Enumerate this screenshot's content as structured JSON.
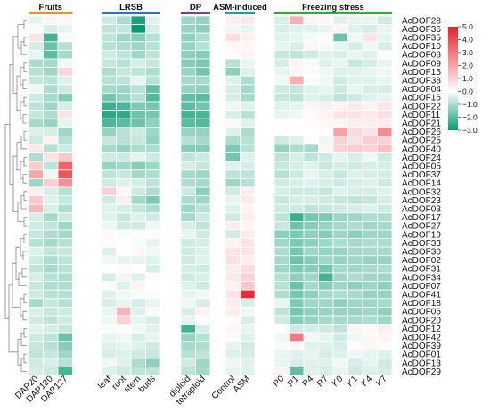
{
  "colors": {
    "low": "#0a9a72",
    "mid": "#ffffff",
    "high": "#e8202a",
    "dendrogram": "#888888",
    "cell_border": "#ffffff"
  },
  "chart_data": {
    "type": "heatmap",
    "groups": [
      {
        "name": "Fruits",
        "color": "#f08c32",
        "columns": [
          "DAP20",
          "DAP120",
          "DAP127"
        ]
      },
      {
        "name": "LRSB",
        "color": "#2f73c7",
        "columns": [
          "leaf",
          "root",
          "stem",
          "buds"
        ]
      },
      {
        "name": "DP",
        "color": "#7b3fa0",
        "columns": [
          "diploid",
          "tetraploid"
        ]
      },
      {
        "name": "ASM-induced",
        "color": "#1fa38a",
        "columns": [
          "Control",
          "ASM"
        ]
      },
      {
        "name": "Freezing stress",
        "color": "#33aa33",
        "columns": [
          "R0",
          "R1",
          "R4",
          "R7",
          "K0",
          "K1",
          "K4",
          "K7"
        ]
      }
    ],
    "rows": [
      "AcDOF28",
      "AcDOF36",
      "AcDOF35",
      "AcDOF10",
      "AcDOF08",
      "AcDOF09",
      "AcDOF15",
      "AcDOF38",
      "AcDOF04",
      "AcDOF16",
      "AcDOF22",
      "AcDOF11",
      "AcDOF21",
      "AcDOF26",
      "AcDOF25",
      "AcDOF40",
      "AcDOF24",
      "AcDOF05",
      "AcDOF37",
      "AcDOF14",
      "AcDOF32",
      "AcDOF23",
      "AcDOF03",
      "AcDOF17",
      "AcDOF27",
      "AcDOF19",
      "AcDOF33",
      "AcDOF30",
      "AcDOF02",
      "AcDOF31",
      "AcDOF34",
      "AcDOF07",
      "AcDOF41",
      "AcDOF18",
      "AcDOF06",
      "AcDOF20",
      "AcDOF12",
      "AcDOF42",
      "AcDOF39",
      "AcDOF01",
      "AcDOF13",
      "AcDOF29"
    ],
    "values": [
      [
        -0.3,
        0.3,
        0.2,
        -0.6,
        -1.0,
        -2.8,
        -0.4,
        -1.2,
        -1.3,
        0.4,
        0.5,
        -0.5,
        1.8,
        0.3,
        0.2,
        -0.4,
        -0.3,
        -0.3,
        -0.6
      ],
      [
        -0.1,
        -0.5,
        -0.3,
        -0.8,
        -0.7,
        -3.0,
        -0.5,
        -1.3,
        -1.4,
        -0.2,
        -0.3,
        -0.5,
        -0.4,
        -0.4,
        -0.3,
        0.3,
        -0.4,
        -0.5,
        -0.3
      ],
      [
        0.6,
        -2.3,
        -0.1,
        -0.8,
        -1.2,
        -1.5,
        -0.9,
        -1.4,
        -1.0,
        0.7,
        0.4,
        -0.4,
        -0.3,
        -0.1,
        0.1,
        -1.8,
        -0.2,
        0.6,
        -0.3
      ],
      [
        -0.5,
        -1.8,
        -0.9,
        -0.9,
        -1.0,
        -1.2,
        -0.9,
        -1.3,
        -0.9,
        0.2,
        0.2,
        -0.3,
        -0.5,
        0.2,
        -0.1,
        -0.3,
        -0.5,
        -0.2,
        -0.5
      ],
      [
        -0.3,
        -2.0,
        -1.1,
        -0.6,
        -0.8,
        -1.2,
        -0.8,
        -1.4,
        -1.5,
        0.1,
        0.3,
        -0.7,
        -0.8,
        -0.6,
        -0.4,
        -0.5,
        -0.3,
        -0.4,
        0.1
      ],
      [
        -1.0,
        -1.1,
        -0.2,
        -0.7,
        -0.9,
        -0.5,
        -0.7,
        -1.5,
        -1.6,
        -0.9,
        -0.3,
        -0.5,
        0.3,
        -0.1,
        -0.4,
        -0.3,
        -0.7,
        -0.5,
        -0.3
      ],
      [
        -0.9,
        -1.2,
        0.9,
        -1.0,
        -0.7,
        -0.8,
        -1.0,
        -1.3,
        -1.7,
        -1.4,
        -0.4,
        -0.3,
        0.2,
        0.1,
        -0.2,
        -0.4,
        -0.4,
        -0.3,
        -0.2
      ],
      [
        -0.7,
        -0.9,
        -0.4,
        -0.9,
        -0.8,
        -0.3,
        -0.9,
        -1.1,
        -1.1,
        -0.4,
        -1.0,
        -0.2,
        1.8,
        -0.1,
        -0.2,
        -0.6,
        -0.4,
        -0.4,
        -0.3
      ],
      [
        -0.2,
        -1.0,
        -0.6,
        -1.1,
        -1.2,
        -0.9,
        -1.9,
        -1.3,
        -1.4,
        -0.5,
        -1.1,
        -0.6,
        -0.7,
        -0.4,
        -0.3,
        -0.6,
        -0.3,
        -0.5,
        -0.5
      ],
      [
        -0.6,
        -1.1,
        -1.5,
        -1.7,
        -1.3,
        -0.9,
        -2.1,
        -1.9,
        -2.0,
        -0.5,
        -1.1,
        -0.7,
        -0.8,
        -0.4,
        -0.5,
        -0.8,
        -0.6,
        -0.4,
        -0.3
      ],
      [
        -0.8,
        -1.2,
        -0.5,
        -2.4,
        -2.2,
        -1.6,
        -1.7,
        -2.0,
        -1.7,
        -0.2,
        -0.4,
        -0.4,
        -0.3,
        0.2,
        0.4,
        0.3,
        0.5,
        0.3,
        0.6
      ],
      [
        -0.7,
        -1.0,
        0.6,
        -2.6,
        -2.5,
        -1.8,
        -1.7,
        -2.3,
        -2.2,
        -0.5,
        -0.9,
        -0.3,
        -0.2,
        0.1,
        0.3,
        0.6,
        0.6,
        0.5,
        0.7
      ],
      [
        -1.1,
        -1.3,
        -0.3,
        -2.2,
        -2.0,
        -1.8,
        -1.4,
        -2.0,
        -2.1,
        -0.1,
        -0.4,
        0.0,
        0.0,
        0.1,
        0.2,
        0.2,
        0.4,
        0.4,
        0.4
      ],
      [
        -0.4,
        -0.5,
        -1.2,
        -1.3,
        -0.9,
        -0.6,
        -1.2,
        -1.3,
        -1.3,
        -0.4,
        -1.0,
        0.0,
        0.0,
        0.0,
        0.0,
        2.1,
        0.8,
        0.6,
        2.6
      ],
      [
        -0.6,
        0.3,
        -0.9,
        -0.7,
        -0.9,
        -0.7,
        -1.3,
        -0.9,
        -1.1,
        -1.0,
        -0.9,
        -0.6,
        -0.4,
        0.0,
        -0.2,
        1.0,
        0.6,
        1.1,
        1.0
      ],
      [
        0.5,
        -0.9,
        -0.6,
        -1.1,
        -1.3,
        -1.0,
        -1.0,
        -1.5,
        -1.5,
        -1.6,
        -0.9,
        -1.3,
        -1.0,
        -1.1,
        0.2,
        1.0,
        1.1,
        1.0,
        1.4
      ],
      [
        -1.0,
        0.6,
        1.2,
        -0.6,
        -0.6,
        -0.3,
        -0.6,
        -0.8,
        -0.6,
        -1.7,
        -0.4,
        -0.8,
        -0.5,
        -0.8,
        -0.6,
        -0.3,
        -0.5,
        -0.2,
        -0.6
      ],
      [
        1.1,
        -0.8,
        3.5,
        -1.3,
        -1.2,
        -1.5,
        -1.2,
        -0.5,
        -0.7,
        -0.4,
        -0.5,
        -0.7,
        -0.5,
        -0.4,
        -0.7,
        -0.5,
        -0.6,
        -0.5,
        -0.5
      ],
      [
        2.0,
        -0.2,
        3.8,
        -0.8,
        -0.7,
        -1.1,
        -1.0,
        -1.1,
        -1.2,
        -0.8,
        -0.8,
        -0.9,
        -0.6,
        -0.3,
        -0.5,
        -0.7,
        -0.4,
        -0.5,
        -0.5
      ],
      [
        -1.2,
        1.1,
        2.5,
        -0.6,
        -0.4,
        -0.5,
        -0.8,
        -1.0,
        -1.1,
        -1.2,
        -0.9,
        -0.6,
        -0.5,
        -0.4,
        -0.5,
        -0.6,
        -0.5,
        -0.4,
        -0.6
      ],
      [
        0.4,
        -0.5,
        -0.9,
        1.0,
        0.2,
        -0.6,
        -1.0,
        -0.6,
        -1.4,
        -0.6,
        0.4,
        -0.5,
        -0.6,
        -0.6,
        -0.7,
        -0.4,
        -0.5,
        -0.5,
        -0.4
      ],
      [
        1.2,
        -0.4,
        -0.7,
        -0.6,
        0.4,
        -1.1,
        -1.6,
        -1.0,
        -1.2,
        -0.3,
        0.5,
        -0.7,
        -0.5,
        -0.5,
        -0.6,
        -0.7,
        -0.8,
        -0.7,
        -0.5
      ],
      [
        1.6,
        -0.5,
        -1.0,
        -0.4,
        -0.5,
        -0.7,
        -1.0,
        -1.2,
        -0.9,
        -0.4,
        0.3,
        -0.6,
        -0.6,
        -0.8,
        -0.7,
        -0.6,
        -0.5,
        -0.4,
        -0.6
      ],
      [
        -0.5,
        -1.1,
        -0.6,
        -0.4,
        -0.7,
        -0.4,
        -0.6,
        -1.1,
        -0.6,
        -0.6,
        0.4,
        -0.8,
        -2.4,
        -1.7,
        -1.6,
        -1.2,
        -1.2,
        -1.0,
        -1.0
      ],
      [
        -0.6,
        -0.8,
        -1.2,
        -0.2,
        -0.6,
        -0.6,
        -0.2,
        -0.5,
        -0.8,
        0.4,
        0.2,
        -0.7,
        -1.8,
        -1.5,
        -1.3,
        -1.1,
        -1.0,
        -1.2,
        -1.1
      ],
      [
        -0.7,
        -1.0,
        -1.1,
        0.1,
        -0.1,
        0.1,
        0.1,
        -0.3,
        -0.6,
        -0.6,
        0.5,
        -1.4,
        -1.6,
        -1.4,
        -1.5,
        -1.2,
        -1.4,
        -1.2,
        -1.2
      ],
      [
        -0.9,
        -1.1,
        -0.9,
        0.1,
        0.0,
        -0.1,
        -0.3,
        -0.6,
        -0.5,
        0.3,
        0.6,
        -1.2,
        -1.6,
        -1.4,
        -1.2,
        -1.0,
        -1.1,
        -1.0,
        -1.0
      ],
      [
        -0.4,
        -0.8,
        -0.7,
        -0.4,
        0.0,
        0.2,
        -0.2,
        -0.6,
        -0.4,
        0.6,
        0.6,
        -1.0,
        -1.7,
        -1.2,
        -1.3,
        -1.3,
        -1.1,
        -1.1,
        -1.1
      ],
      [
        -0.6,
        -1.0,
        -0.8,
        -0.2,
        -0.3,
        -0.3,
        -0.4,
        -0.6,
        -0.4,
        0.7,
        0.4,
        -1.1,
        -1.8,
        -1.5,
        -1.2,
        -1.3,
        -1.2,
        -1.3,
        -1.3
      ],
      [
        -0.8,
        -1.1,
        -0.9,
        0.0,
        0.1,
        0.0,
        -0.5,
        -0.5,
        -0.6,
        0.4,
        0.8,
        -1.2,
        -1.6,
        -1.5,
        -1.7,
        -1.1,
        -1.2,
        -1.1,
        -1.0
      ],
      [
        -0.5,
        -0.9,
        -1.0,
        -0.5,
        -0.2,
        -0.4,
        0.1,
        -0.6,
        -0.5,
        0.5,
        1.0,
        -0.9,
        -1.4,
        -1.2,
        -2.3,
        -1.2,
        -1.0,
        -1.2,
        -1.2
      ],
      [
        -0.7,
        -1.0,
        -1.0,
        0.1,
        -0.4,
        0.3,
        0.0,
        -0.4,
        -0.6,
        0.3,
        1.2,
        -0.9,
        -1.8,
        -1.1,
        -1.5,
        -1.2,
        -1.4,
        -1.2,
        -1.4
      ],
      [
        -0.6,
        -0.9,
        -0.9,
        -0.4,
        -0.2,
        -0.1,
        -0.1,
        -0.3,
        -0.2,
        0.6,
        4.8,
        -1.0,
        -1.7,
        -1.4,
        -1.1,
        -1.0,
        -1.1,
        -1.3,
        -1.3
      ],
      [
        -1.1,
        -0.7,
        -0.9,
        -0.5,
        -0.3,
        -0.5,
        -0.3,
        -0.2,
        -0.5,
        0.4,
        -0.5,
        -0.3,
        -1.6,
        -1.2,
        -1.2,
        -1.4,
        -1.2,
        -1.2,
        -1.1
      ],
      [
        -0.5,
        -0.7,
        -0.6,
        -0.3,
        1.7,
        -0.4,
        -0.1,
        -0.5,
        0.3,
        0.4,
        -0.2,
        -0.8,
        -1.7,
        -1.4,
        -1.3,
        -1.3,
        -1.3,
        -1.2,
        -1.4
      ],
      [
        -0.6,
        -0.8,
        -0.6,
        -0.2,
        1.0,
        -0.3,
        -0.5,
        -0.3,
        0.1,
        0.1,
        -0.5,
        -0.6,
        -1.5,
        -1.3,
        -1.1,
        -1.1,
        -1.1,
        -1.0,
        -1.2
      ],
      [
        -0.4,
        -0.5,
        -0.7,
        -0.1,
        0.1,
        -0.2,
        -0.4,
        -2.3,
        -0.5,
        0.2,
        -0.3,
        0.0,
        -0.6,
        -0.5,
        -0.6,
        -0.8,
        0.3,
        0.1,
        0.4
      ],
      [
        -0.6,
        -0.8,
        -1.8,
        -0.3,
        -0.2,
        -0.5,
        -0.3,
        -1.3,
        -0.9,
        0.1,
        -0.4,
        -0.2,
        3.0,
        -0.2,
        -0.3,
        -0.6,
        -0.2,
        0.2,
        0.3
      ],
      [
        -0.7,
        -0.9,
        -1.5,
        -0.4,
        -0.3,
        -0.4,
        -0.6,
        -1.1,
        -1.0,
        -0.3,
        -0.6,
        -0.1,
        0.2,
        -0.4,
        -0.4,
        -0.5,
        0.1,
        0.2,
        0.1
      ],
      [
        -0.8,
        -0.7,
        -1.2,
        -0.5,
        -0.4,
        -0.6,
        -0.7,
        -0.9,
        -0.8,
        -0.4,
        -0.5,
        -0.3,
        -0.4,
        -0.3,
        -0.5,
        -0.4,
        -0.2,
        -0.3,
        -0.4
      ],
      [
        -0.6,
        -0.5,
        -0.9,
        -0.2,
        -0.4,
        -1.0,
        -1.4,
        -0.6,
        -1.2,
        -0.2,
        -0.4,
        -0.3,
        -0.5,
        -0.4,
        -0.4,
        -0.2,
        -0.5,
        -0.3,
        -0.6
      ],
      [
        -0.5,
        -0.6,
        -2.2,
        -0.4,
        -0.6,
        -0.8,
        -0.8,
        -0.8,
        -1.1,
        -0.3,
        -0.4,
        0.3,
        -1.9,
        -0.4,
        -0.5,
        -0.3,
        -0.6,
        -0.4,
        -0.5
      ]
    ],
    "colorbar": {
      "ticks": [
        5.0,
        4.0,
        3.0,
        2.0,
        1.0,
        0.0,
        -1.0,
        -2.0,
        -3.0
      ],
      "tick_labels": [
        "5.0",
        "4.0",
        "3.0",
        "2.0",
        "1.0",
        "0.0",
        "−1.0",
        "−2.0",
        "−3.0"
      ],
      "range": [
        -3.0,
        5.0
      ]
    }
  }
}
